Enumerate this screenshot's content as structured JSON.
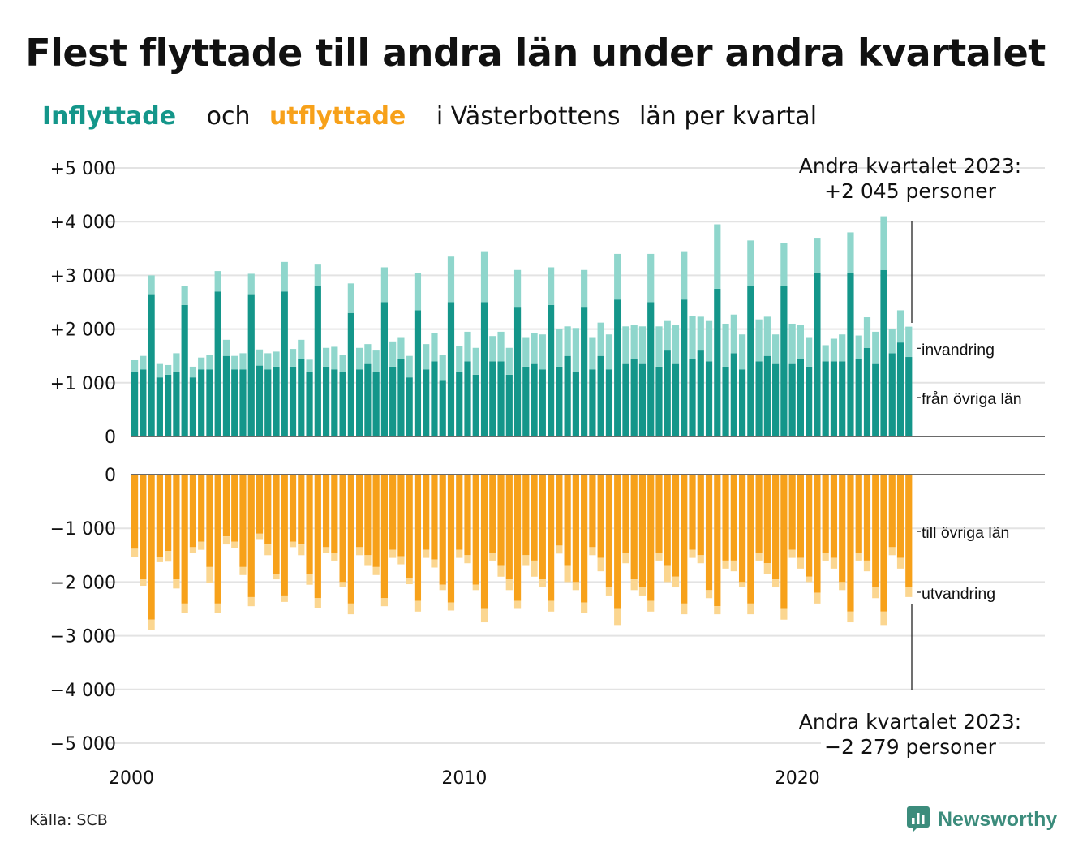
{
  "title": "Flest flyttade till andra län under andra kvartalet",
  "subtitle": {
    "in_word": "Inflyttade",
    "and_word": "och",
    "out_word": "utflyttade",
    "rest_1": "i Västerbottens",
    "rest_2": "län",
    "rest_3": "per",
    "rest_4": "kvartal"
  },
  "annotations": {
    "top_line1": "Andra kvartalet 2023:",
    "top_line2": "+2 045 personer",
    "bottom_line1": "Andra kvartalet 2023:",
    "bottom_line2": "−2 279 personer"
  },
  "source": "Källa: SCB",
  "logo": {
    "icon": "newsworthy-logo-icon",
    "text": "Newsworthy"
  },
  "colors": {
    "in_domestic": "#14968a",
    "in_foreign": "#8fd6cc",
    "out_domestic": "#f7a11a",
    "out_foreign": "#fbd690",
    "grid": "#e3e3e3",
    "text": "#111111"
  },
  "chart_data": {
    "type": "bar",
    "stacked": true,
    "x_start": "2000 Q1",
    "x_ticks": [
      "2000",
      "2010",
      "2020"
    ],
    "y_top": {
      "ylim": [
        0,
        5000
      ],
      "ticks": [
        0,
        1000,
        2000,
        3000,
        4000,
        5000
      ],
      "tick_labels": [
        "0",
        "+1 000",
        "+2 000",
        "+3 000",
        "+4 000",
        "+5 000"
      ]
    },
    "y_bottom": {
      "ylim": [
        -5000,
        0
      ],
      "ticks": [
        0,
        -1000,
        -2000,
        -3000,
        -4000,
        -5000
      ],
      "tick_labels": [
        "0",
        "−1 000",
        "−2 000",
        "−3 000",
        "−4 000",
        "−5 000"
      ]
    },
    "grid": true,
    "series": [
      {
        "name": "från övriga län",
        "group": "in",
        "values": [
          1200,
          1250,
          2650,
          1100,
          1150,
          1200,
          2450,
          1100,
          1250,
          1250,
          2700,
          1500,
          1250,
          1250,
          2650,
          1320,
          1250,
          1300,
          2700,
          1300,
          1450,
          1200,
          2800,
          1300,
          1250,
          1200,
          2300,
          1250,
          1350,
          1200,
          2500,
          1300,
          1450,
          1100,
          2350,
          1250,
          1400,
          1050,
          2500,
          1200,
          1400,
          1150,
          2500,
          1400,
          1400,
          1150,
          2400,
          1300,
          1350,
          1250,
          2450,
          1300,
          1500,
          1200,
          2400,
          1250,
          1500,
          1250,
          2550,
          1350,
          1450,
          1350,
          2500,
          1300,
          1600,
          1350,
          2550,
          1450,
          1600,
          1400,
          2750,
          1300,
          1550,
          1250,
          2800,
          1400,
          1500,
          1350,
          2800,
          1350,
          1450,
          1300,
          3050,
          1400,
          1400,
          1400,
          3050,
          1450,
          1650,
          1350,
          3100,
          1550,
          1750,
          1480
        ]
      },
      {
        "name": "invandring",
        "group": "in",
        "values": [
          220,
          250,
          350,
          250,
          180,
          350,
          350,
          200,
          220,
          270,
          380,
          300,
          250,
          300,
          380,
          300,
          300,
          280,
          550,
          330,
          350,
          230,
          400,
          350,
          420,
          320,
          550,
          400,
          370,
          400,
          650,
          470,
          400,
          400,
          700,
          470,
          520,
          470,
          850,
          480,
          550,
          500,
          950,
          470,
          550,
          500,
          700,
          550,
          570,
          650,
          700,
          700,
          550,
          820,
          700,
          600,
          620,
          650,
          850,
          700,
          630,
          700,
          900,
          750,
          550,
          730,
          900,
          800,
          630,
          750,
          1200,
          800,
          720,
          650,
          850,
          780,
          730,
          550,
          800,
          750,
          620,
          550,
          650,
          300,
          420,
          500,
          750,
          430,
          570,
          600,
          1000,
          450,
          600,
          565
        ]
      },
      {
        "name": "till övriga län",
        "group": "out",
        "values": [
          1380,
          1950,
          2700,
          1530,
          1420,
          1950,
          2400,
          1350,
          1250,
          1720,
          2400,
          1150,
          1250,
          1720,
          2280,
          1100,
          1300,
          1850,
          2250,
          1250,
          1300,
          1850,
          2300,
          1350,
          1450,
          2000,
          2400,
          1350,
          1500,
          1720,
          2300,
          1400,
          1520,
          1920,
          2350,
          1400,
          1580,
          2050,
          2380,
          1400,
          1500,
          2050,
          2500,
          1450,
          1700,
          1950,
          2350,
          1500,
          1600,
          1950,
          2350,
          1320,
          1700,
          2000,
          2380,
          1350,
          1550,
          2100,
          2500,
          1450,
          1950,
          2100,
          2350,
          1450,
          1700,
          1900,
          2400,
          1400,
          1500,
          2150,
          2450,
          1600,
          1600,
          2000,
          2400,
          1450,
          1650,
          1950,
          2500,
          1400,
          1550,
          1900,
          2200,
          1450,
          1550,
          2000,
          2550,
          1450,
          1600,
          2100,
          2550,
          1350,
          1550,
          2100
        ]
      },
      {
        "name": "utvandring",
        "group": "out",
        "values": [
          150,
          120,
          200,
          100,
          200,
          170,
          170,
          100,
          150,
          300,
          170,
          150,
          120,
          150,
          170,
          100,
          200,
          100,
          120,
          100,
          200,
          200,
          190,
          100,
          150,
          100,
          200,
          150,
          200,
          150,
          150,
          150,
          150,
          120,
          200,
          150,
          150,
          100,
          150,
          150,
          150,
          100,
          250,
          150,
          200,
          200,
          150,
          200,
          300,
          150,
          200,
          150,
          300,
          150,
          200,
          150,
          250,
          150,
          300,
          200,
          200,
          150,
          200,
          150,
          300,
          200,
          200,
          150,
          150,
          150,
          150,
          150,
          200,
          100,
          200,
          150,
          200,
          150,
          200,
          150,
          200,
          100,
          200,
          150,
          200,
          150,
          200,
          150,
          200,
          200,
          250,
          150,
          200,
          179
        ]
      }
    ]
  },
  "labels": {
    "in_domestic": "från övriga län",
    "in_foreign": "invandring",
    "out_domestic": "till övriga län",
    "out_foreign": "utvandring"
  }
}
